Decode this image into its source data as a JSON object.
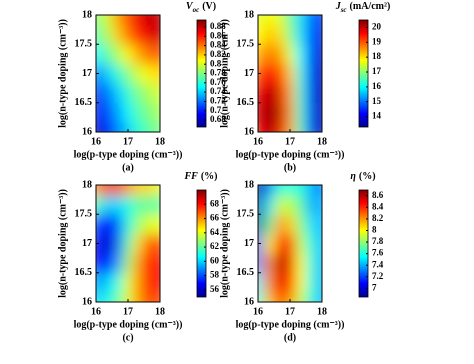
{
  "chart_data": [
    {
      "type": "heatmap",
      "colormap": "jet",
      "caption": "(a)",
      "colorbar_label": {
        "symbol": "V",
        "subscript": "oc",
        "unit": "(V)"
      },
      "xlabel": "log(p-type doping (cm⁻³))",
      "ylabel": "log(n-type doping (cm⁻³))",
      "x": [
        16,
        16.33,
        16.67,
        17,
        17.33,
        17.67,
        18
      ],
      "y": [
        16,
        16.33,
        16.67,
        17,
        17.33,
        17.67,
        18
      ],
      "z": [
        [
          0.68,
          0.7,
          0.72,
          0.74,
          0.76,
          0.77,
          0.78
        ],
        [
          0.69,
          0.71,
          0.73,
          0.75,
          0.77,
          0.78,
          0.79
        ],
        [
          0.7,
          0.72,
          0.74,
          0.76,
          0.78,
          0.79,
          0.8
        ],
        [
          0.72,
          0.74,
          0.76,
          0.78,
          0.8,
          0.81,
          0.82
        ],
        [
          0.75,
          0.77,
          0.79,
          0.81,
          0.83,
          0.84,
          0.85
        ],
        [
          0.77,
          0.79,
          0.82,
          0.84,
          0.86,
          0.87,
          0.88
        ],
        [
          0.78,
          0.8,
          0.83,
          0.85,
          0.87,
          0.88,
          0.88
        ]
      ],
      "xlim": [
        16,
        18
      ],
      "ylim": [
        16,
        18
      ],
      "xticks": [
        16,
        17,
        18
      ],
      "yticks": [
        16,
        16.5,
        17,
        17.5,
        18
      ],
      "zlim": [
        0.665,
        0.895
      ],
      "zticks": [
        0.68,
        0.7,
        0.72,
        0.74,
        0.76,
        0.78,
        0.8,
        0.82,
        0.84,
        0.86,
        0.88
      ]
    },
    {
      "type": "heatmap",
      "colormap": "jet",
      "caption": "(b)",
      "colorbar_label": {
        "symbol": "J",
        "subscript": "sc",
        "unit": "(mA/cm²)"
      },
      "xlabel": "log(p-type doping (cm⁻³))",
      "ylabel": "log(n-type doping (cm⁻³))",
      "x": [
        16,
        16.33,
        16.67,
        17,
        17.33,
        17.67,
        18
      ],
      "y": [
        16,
        16.33,
        16.67,
        17,
        17.33,
        17.67,
        18
      ],
      "z": [
        [
          19.5,
          20.2,
          19.8,
          18.5,
          16.5,
          14.5,
          13.5
        ],
        [
          19.8,
          20.4,
          20.0,
          18.6,
          16.4,
          14.4,
          13.5
        ],
        [
          19.6,
          20.2,
          19.8,
          18.5,
          16.3,
          14.3,
          13.5
        ],
        [
          19.0,
          19.6,
          19.2,
          18.2,
          16.2,
          14.4,
          13.6
        ],
        [
          18.3,
          18.8,
          18.5,
          17.6,
          16.0,
          14.6,
          13.8
        ],
        [
          17.8,
          18.2,
          18.0,
          17.0,
          15.8,
          14.8,
          14.0
        ],
        [
          17.5,
          17.8,
          17.6,
          16.8,
          15.8,
          15.0,
          14.4
        ]
      ],
      "xlim": [
        16,
        18
      ],
      "ylim": [
        16,
        18
      ],
      "xticks": [
        16,
        17,
        18
      ],
      "yticks": [
        16,
        16.5,
        17,
        17.5,
        18
      ],
      "zlim": [
        13.3,
        20.5
      ],
      "zticks": [
        14,
        15,
        16,
        17,
        18,
        19,
        20
      ]
    },
    {
      "type": "heatmap",
      "colormap": "jet",
      "caption": "(c)",
      "colorbar_label": {
        "symbol": "FF",
        "unit": "(%)"
      },
      "xlabel": "log(p-type doping (cm⁻³))",
      "ylabel": "log(n-type doping (cm⁻³))",
      "x": [
        16,
        16.33,
        16.67,
        17,
        17.33,
        17.67,
        18
      ],
      "y": [
        16,
        16.33,
        16.67,
        17,
        17.33,
        17.67,
        18
      ],
      "z": [
        [
          60,
          61,
          62,
          64,
          66,
          67,
          67
        ],
        [
          59,
          60,
          61,
          64,
          66,
          68,
          68
        ],
        [
          57,
          57,
          59,
          63,
          66,
          68,
          68
        ],
        [
          57,
          56,
          58,
          62,
          65,
          67,
          67
        ],
        [
          58,
          57,
          58,
          61,
          63,
          64,
          64
        ],
        [
          62,
          60,
          60,
          61,
          62,
          62,
          62
        ],
        [
          66,
          67,
          67,
          66,
          65,
          65,
          64
        ]
      ],
      "xlim": [
        16,
        18
      ],
      "ylim": [
        16,
        18
      ],
      "xticks": [
        16,
        17,
        18
      ],
      "yticks": [
        16,
        16.5,
        17,
        17.5,
        18
      ],
      "zlim": [
        55,
        70
      ],
      "zticks": [
        56,
        58,
        60,
        62,
        64,
        66,
        68
      ]
    },
    {
      "type": "heatmap",
      "colormap": "jet",
      "caption": "(d)",
      "colorbar_label": {
        "symbol": "η",
        "unit": "(%)"
      },
      "xlabel": "log(p-type doping (cm⁻³))",
      "ylabel": "log(n-type doping (cm⁻³))",
      "x": [
        16,
        16.33,
        16.67,
        17,
        17.33,
        17.67,
        18
      ],
      "y": [
        16,
        16.33,
        16.67,
        17,
        17.33,
        17.67,
        18
      ],
      "z": [
        [
          7.6,
          8.1,
          8.3,
          8.2,
          7.9,
          7.6,
          7.4
        ],
        [
          7.5,
          8.2,
          8.5,
          8.4,
          8.0,
          7.6,
          7.4
        ],
        [
          7.3,
          8.2,
          8.6,
          8.5,
          8.0,
          7.6,
          7.4
        ],
        [
          7.1,
          8.0,
          8.4,
          8.4,
          7.9,
          7.6,
          7.4
        ],
        [
          6.9,
          7.7,
          8.2,
          8.1,
          7.8,
          7.5,
          7.4
        ],
        [
          6.9,
          7.5,
          7.9,
          7.9,
          7.7,
          7.4,
          7.4
        ],
        [
          6.9,
          7.3,
          7.6,
          7.6,
          7.6,
          7.4,
          7.3
        ]
      ],
      "xlim": [
        16,
        18
      ],
      "ylim": [
        16,
        18
      ],
      "xticks": [
        16,
        17,
        18
      ],
      "yticks": [
        16,
        16.5,
        17,
        17.5,
        18
      ],
      "zlim": [
        6.85,
        8.7
      ],
      "zticks": [
        7,
        7.2,
        7.4,
        7.6,
        7.8,
        8,
        8.2,
        8.4,
        8.6
      ]
    }
  ]
}
